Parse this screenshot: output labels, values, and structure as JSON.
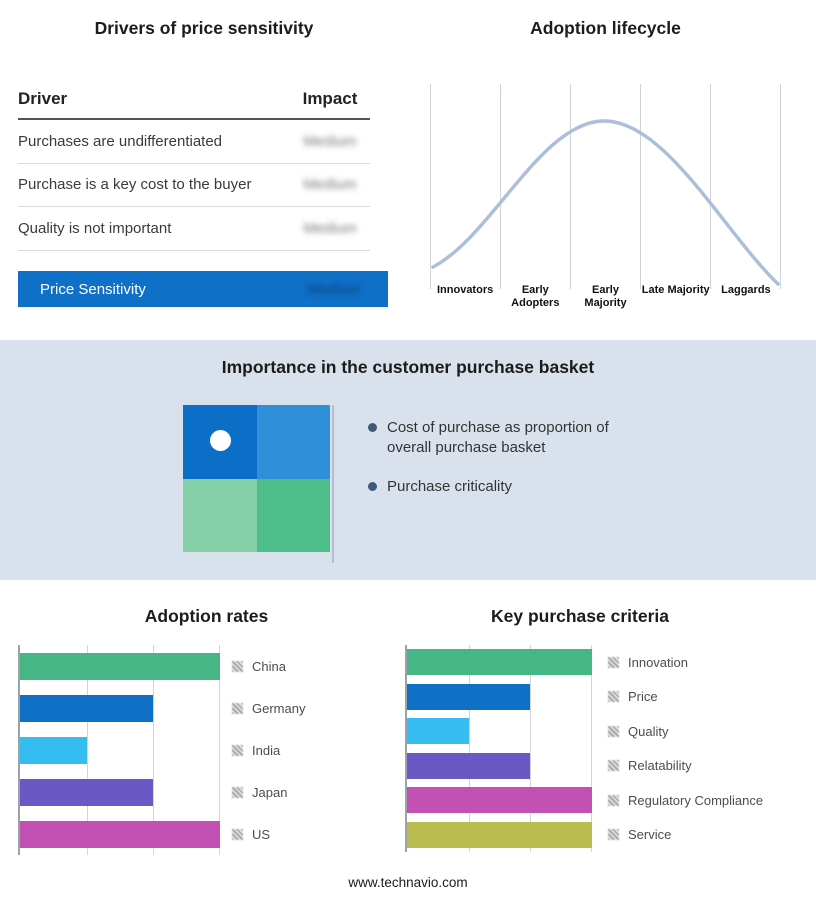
{
  "page": {
    "footer": "www.technavio.com"
  },
  "drivers": {
    "title": "Drivers of price sensitivity",
    "columns": {
      "driver": "Driver",
      "impact": "Impact"
    },
    "rows": [
      {
        "driver": "Purchases are undifferentiated",
        "impact": "Medium"
      },
      {
        "driver": "Purchase is a key cost to the buyer",
        "impact": "Medium"
      },
      {
        "driver": "Quality is not important",
        "impact": "Medium"
      }
    ],
    "summary": {
      "label": "Price Sensitivity",
      "impact": "Medium"
    },
    "highlight_color": "#0f70c8"
  },
  "lifecycle": {
    "title": "Adoption lifecycle",
    "stages": [
      "Innovators",
      "Early Adopters",
      "Early Majority",
      "Late Majority",
      "Laggards"
    ],
    "curve_color": "#adbfd8"
  },
  "basket": {
    "title": "Importance in the customer purchase basket",
    "bullets": [
      "Cost of purchase as proportion of overall purchase basket",
      "Purchase criticality"
    ],
    "bullet_color": "#3d5a78",
    "quadrants": {
      "top_left": "#0b6fc8",
      "top_right": "#2f8fd9",
      "bottom_left": "#84cfa6",
      "bottom_right": "#4dbd8a"
    }
  },
  "chart_data": [
    {
      "type": "bar",
      "title": "Adoption rates",
      "orientation": "horizontal",
      "categories": [
        "China",
        "Germany",
        "India",
        "Japan",
        "US"
      ],
      "values": [
        3,
        2,
        1,
        2,
        3
      ],
      "xlim": [
        0,
        3
      ],
      "grid": true,
      "legend_position": "right",
      "colors": [
        "#46b784",
        "#0f70c8",
        "#35bdf2",
        "#6a59c5",
        "#c251b3"
      ]
    },
    {
      "type": "bar",
      "title": "Key purchase criteria",
      "orientation": "horizontal",
      "categories": [
        "Innovation",
        "Price",
        "Quality",
        "Relatability",
        "Regulatory Compliance",
        "Service"
      ],
      "values": [
        3,
        2,
        1,
        2,
        3,
        3
      ],
      "xlim": [
        0,
        3
      ],
      "grid": true,
      "legend_position": "right",
      "colors": [
        "#46b784",
        "#0f70c8",
        "#35bdf2",
        "#6a59c5",
        "#c251b3",
        "#b9bd4e"
      ]
    }
  ]
}
